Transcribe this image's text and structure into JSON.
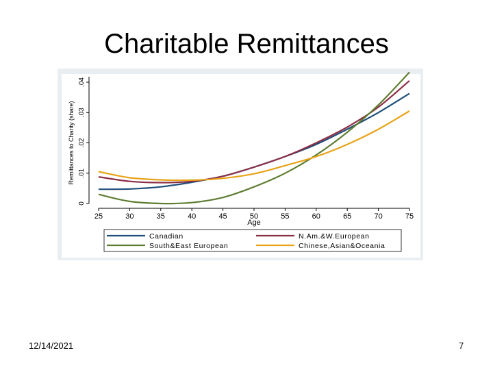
{
  "slide": {
    "title": "Charitable Remittances",
    "date": "12/14/2021",
    "page_number": "7"
  },
  "chart_data": {
    "type": "line",
    "title": "",
    "xlabel": "Age",
    "ylabel": "Remittances to Charity (share)",
    "xlim": [
      25,
      75
    ],
    "ylim": [
      0,
      0.04
    ],
    "xticks": [
      25,
      30,
      35,
      40,
      45,
      50,
      55,
      60,
      65,
      70,
      75
    ],
    "xtick_labels": [
      "25",
      "30",
      "35",
      "40",
      "45",
      "50",
      "55",
      "60",
      "65",
      "70",
      "75"
    ],
    "yticks": [
      0,
      0.01,
      0.02,
      0.03,
      0.04
    ],
    "ytick_labels": [
      "0",
      ".01",
      ".02",
      ".03",
      ".04"
    ],
    "grid": false,
    "legend_position": "bottom",
    "x": [
      25,
      30,
      35,
      40,
      45,
      50,
      55,
      60,
      65,
      70,
      75
    ],
    "series": [
      {
        "name": "Canadian",
        "color": "#1f4e79",
        "values": [
          0.0047,
          0.0048,
          0.0055,
          0.007,
          0.009,
          0.012,
          0.0155,
          0.0195,
          0.0245,
          0.03,
          0.0363
        ]
      },
      {
        "name": "N.Am.&W.European",
        "color": "#8b2f46",
        "values": [
          0.0088,
          0.0073,
          0.0069,
          0.0073,
          0.009,
          0.012,
          0.0155,
          0.02,
          0.0252,
          0.0318,
          0.0405
        ]
      },
      {
        "name": "South&East European",
        "color": "#5f7d32",
        "values": [
          0.003,
          0.0007,
          0.0,
          0.0003,
          0.002,
          0.0055,
          0.01,
          0.016,
          0.0235,
          0.0325,
          0.0433
        ]
      },
      {
        "name": "Chinese,Asian&Oceania",
        "color": "#e8a317",
        "values": [
          0.0105,
          0.0085,
          0.0078,
          0.0077,
          0.0083,
          0.0098,
          0.0125,
          0.0155,
          0.0195,
          0.0245,
          0.0305
        ]
      }
    ]
  }
}
